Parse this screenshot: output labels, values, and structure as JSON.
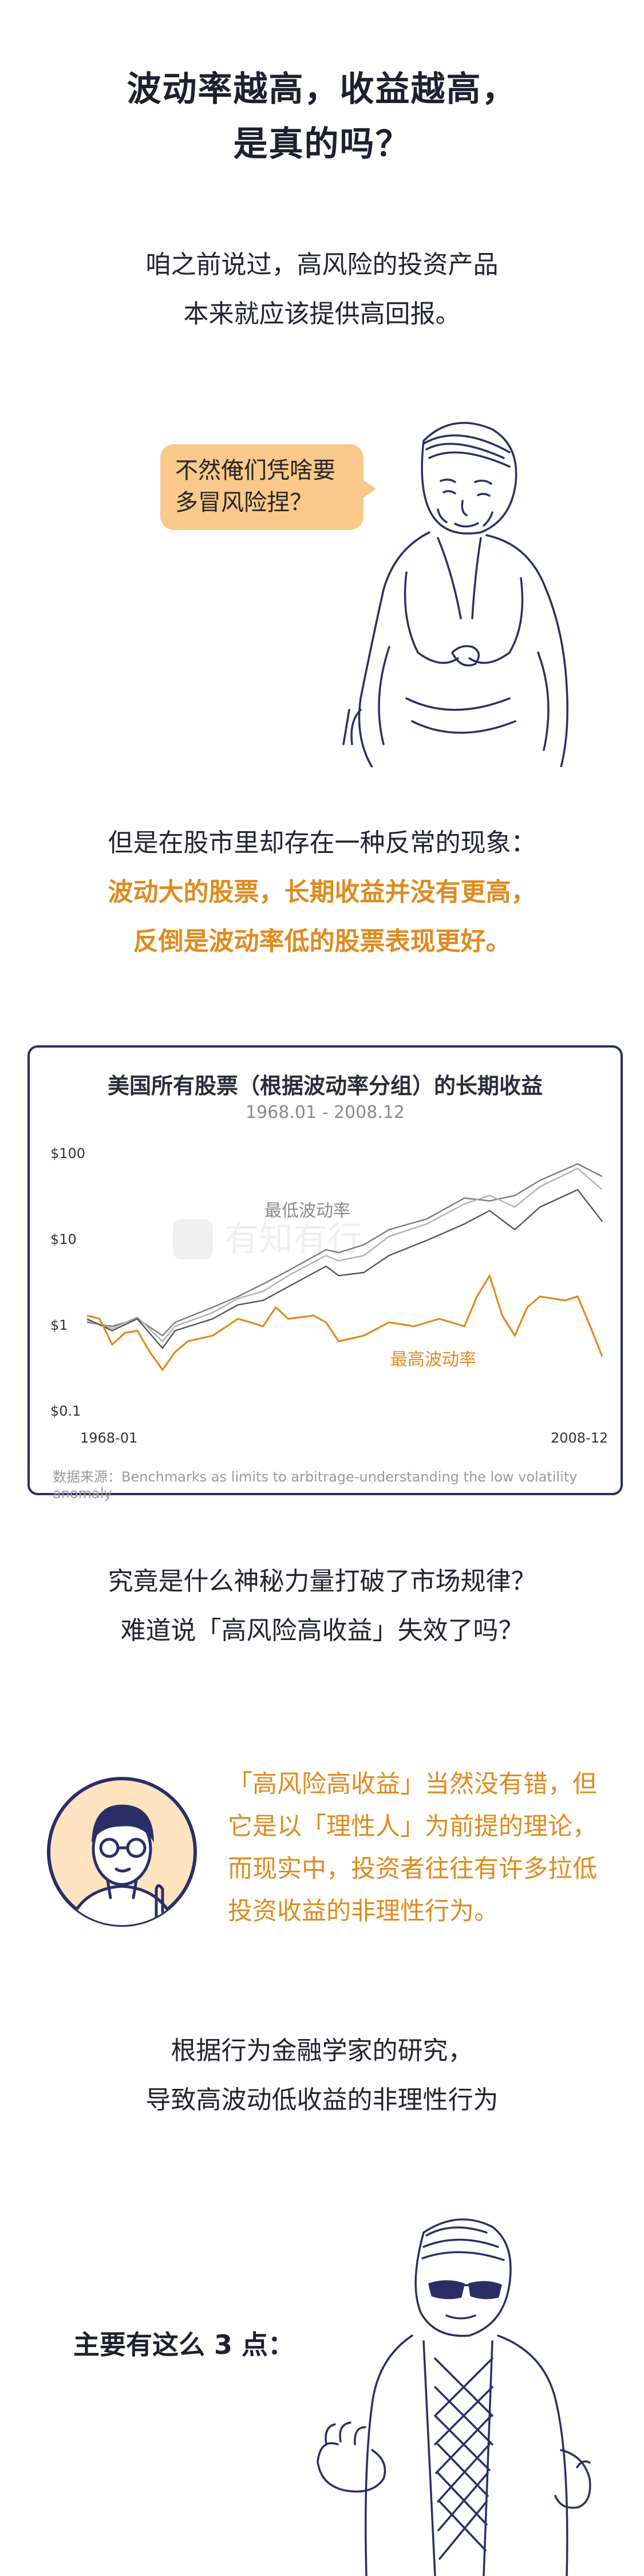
{
  "title": {
    "line1": "波动率越高，收益越高，",
    "line2": "是真的吗？"
  },
  "intro": {
    "line1": "咱之前说过，高风险的投资产品",
    "line2": "本来就应该提供高回报。"
  },
  "bubble": {
    "line1": "不然俺们凭啥要",
    "line2": "多冒风险捏？"
  },
  "anomaly": {
    "line1": "但是在股市里却存在一种反常的现象：",
    "line2": "波动大的股票，长期收益并没有更高，",
    "line3": "反倒是波动率低的股票表现更好。"
  },
  "chart_data": {
    "type": "line",
    "title": "美国所有股票（根据波动率分组）的长期收益",
    "subtitle": "1968.01 - 2008.12",
    "x_tick_labels": [
      "1968-01",
      "2008-12"
    ],
    "y_tick_labels": [
      "$100",
      "$10",
      "$1",
      "$0.1"
    ],
    "y_scale": "log",
    "ylim": [
      0.1,
      100
    ],
    "xlim": [
      1968.0,
      2008.95
    ],
    "grid": false,
    "annotations": [
      "最低波动率",
      "最高波动率"
    ],
    "source": "数据来源：Benchmarks as limits to arbitrage-understanding the low volatility anomaly",
    "series": [
      {
        "color": "#7a7a7a",
        "x": [
          1968,
          1970,
          1972,
          1974,
          1975,
          1978,
          1980,
          1982,
          1984,
          1987,
          1988,
          1990,
          1992,
          1995,
          1998,
          2000,
          2002,
          2004,
          2007,
          2008.95
        ],
        "values": [
          1.0,
          0.9,
          1.1,
          0.7,
          1.0,
          1.5,
          2.0,
          2.8,
          4.0,
          7.0,
          6.5,
          8.0,
          12,
          16,
          28,
          26,
          30,
          45,
          70,
          50
        ]
      },
      {
        "color": "#b0b0b0",
        "x": [
          1968,
          1970,
          1972,
          1974,
          1975,
          1978,
          1980,
          1982,
          1984,
          1987,
          1988,
          1990,
          1992,
          1995,
          1998,
          2000,
          2002,
          2004,
          2007,
          2008.95
        ],
        "values": [
          1.05,
          0.85,
          1.15,
          0.6,
          0.9,
          1.3,
          1.9,
          2.3,
          3.5,
          6.0,
          5.2,
          6.0,
          10,
          14,
          24,
          30,
          22,
          38,
          62,
          35
        ]
      },
      {
        "color": "#555555",
        "x": [
          1968,
          1970,
          1972,
          1974,
          1975,
          1978,
          1980,
          1982,
          1984,
          1987,
          1988,
          1990,
          1992,
          1995,
          1998,
          2000,
          2002,
          2004,
          2007,
          2008.95
        ],
        "values": [
          1.1,
          0.8,
          1.1,
          0.5,
          0.8,
          1.1,
          1.6,
          1.8,
          2.6,
          4.5,
          3.5,
          3.8,
          6,
          9,
          14,
          20,
          12,
          22,
          35,
          15
        ]
      },
      {
        "color": "#e08a1e",
        "x": [
          1968,
          1969,
          1970,
          1971,
          1972,
          1973,
          1974,
          1975,
          1976,
          1978,
          1980,
          1981,
          1982,
          1983,
          1984,
          1986,
          1987,
          1988,
          1990,
          1992,
          1994,
          1996,
          1998,
          1999,
          2000,
          2001,
          2002,
          2003,
          2004,
          2006,
          2007,
          2008,
          2008.95
        ],
        "values": [
          1.2,
          1.1,
          0.55,
          0.75,
          0.8,
          0.45,
          0.28,
          0.45,
          0.6,
          0.7,
          1.1,
          1.0,
          0.9,
          1.5,
          1.1,
          1.2,
          1.0,
          0.6,
          0.7,
          1.0,
          0.9,
          1.1,
          0.9,
          2.0,
          3.5,
          1.2,
          0.7,
          1.5,
          2.0,
          1.8,
          2.0,
          0.9,
          0.4
        ]
      }
    ]
  },
  "question": {
    "line1": "究竟是什么神秘力量打破了市场规律？",
    "line2": "难道说「高风险高收益」失效了吗？"
  },
  "quote": {
    "line1": "「高风险高收益」当然没有错，但",
    "line2": "它是以「理性人」为前提的理论，",
    "line3": "而现实中，投资者往往有许多拉低",
    "line4": "投资收益的非理性行为。"
  },
  "research": {
    "line1": "根据行为金融学家的研究，",
    "line2": "导致高波动低收益的非理性行为"
  },
  "points": {
    "label": "主要有这么 3 点："
  },
  "watermark": "有知有行",
  "colors": {
    "accent": "#e08a1e",
    "card_border": "#2b2e66",
    "bubble": "#f8c98a",
    "avatar_bg": "#fde3bf"
  }
}
